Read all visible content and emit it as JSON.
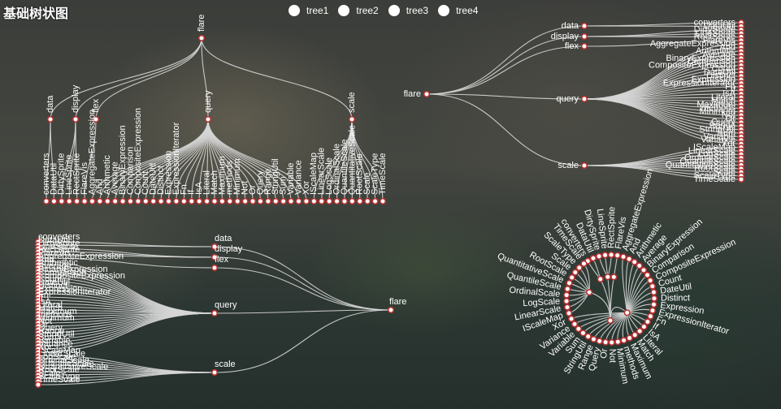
{
  "title": "基础树状图",
  "legend": [
    "tree1",
    "tree2",
    "tree3",
    "tree4"
  ],
  "colors": {
    "link": "#d6d6d6",
    "node_fill": "#ffffff",
    "node_stroke": "#b83232",
    "text": "#ffffff"
  },
  "chart_data": {
    "type": "tree",
    "series": [
      {
        "name": "tree1",
        "layout": "orthogonal",
        "orient": "top-to-bottom"
      },
      {
        "name": "tree2",
        "layout": "orthogonal",
        "orient": "left-to-right"
      },
      {
        "name": "tree3",
        "layout": "orthogonal",
        "orient": "right-to-left"
      },
      {
        "name": "tree4",
        "layout": "radial"
      }
    ],
    "tree": {
      "name": "flare",
      "children": [
        {
          "name": "data",
          "children": [
            {
              "name": "converters"
            },
            {
              "name": "DataUtil"
            }
          ]
        },
        {
          "name": "display",
          "children": [
            {
              "name": "DirtySprite"
            },
            {
              "name": "LineSprite"
            },
            {
              "name": "RectSprite"
            }
          ]
        },
        {
          "name": "flex",
          "children": [
            {
              "name": "FlareVis"
            }
          ]
        },
        {
          "name": "query",
          "children": [
            {
              "name": "AggregateExpression"
            },
            {
              "name": "And"
            },
            {
              "name": "Arithmetic"
            },
            {
              "name": "Average"
            },
            {
              "name": "BinaryExpression"
            },
            {
              "name": "Comparison"
            },
            {
              "name": "CompositeExpression"
            },
            {
              "name": "Count"
            },
            {
              "name": "DateUtil"
            },
            {
              "name": "Distinct"
            },
            {
              "name": "Expression"
            },
            {
              "name": "ExpressionIterator"
            },
            {
              "name": "Fn"
            },
            {
              "name": "If"
            },
            {
              "name": "IsA"
            },
            {
              "name": "Literal"
            },
            {
              "name": "Match"
            },
            {
              "name": "Maximum"
            },
            {
              "name": "methods"
            },
            {
              "name": "Minimum"
            },
            {
              "name": "Not"
            },
            {
              "name": "Or"
            },
            {
              "name": "Query"
            },
            {
              "name": "Range"
            },
            {
              "name": "StringUtil"
            },
            {
              "name": "Sum"
            },
            {
              "name": "Variable"
            },
            {
              "name": "Variance"
            },
            {
              "name": "Xor"
            }
          ]
        },
        {
          "name": "scale",
          "children": [
            {
              "name": "IScaleMap"
            },
            {
              "name": "LinearScale"
            },
            {
              "name": "LogScale"
            },
            {
              "name": "OrdinalScale"
            },
            {
              "name": "QuantileScale"
            },
            {
              "name": "QuantitativeScale"
            },
            {
              "name": "RootScale"
            },
            {
              "name": "Scale"
            },
            {
              "name": "ScaleType"
            },
            {
              "name": "TimeScale"
            }
          ]
        }
      ]
    }
  }
}
